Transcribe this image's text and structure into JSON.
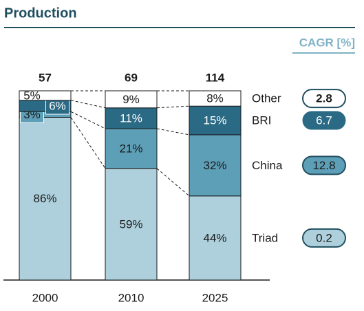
{
  "chart_data": {
    "type": "bar",
    "title": "Production",
    "cagr_label": "CAGR [%]",
    "categories": [
      "2000",
      "2010",
      "2025"
    ],
    "totals": [
      57,
      69,
      114
    ],
    "series": [
      {
        "name": "Triad",
        "color": "#aed0dc",
        "values": [
          86,
          59,
          44
        ],
        "value_labels": [
          "86%",
          "59%",
          "44%"
        ],
        "cagr": 0.2
      },
      {
        "name": "China",
        "color": "#5e9fb8",
        "values": [
          3,
          21,
          32
        ],
        "value_labels": [
          "3%",
          "21%",
          "32%"
        ],
        "cagr": 12.8
      },
      {
        "name": "BRI",
        "color": "#2a6a85",
        "values": [
          6,
          11,
          15
        ],
        "value_labels": [
          "6%",
          "11%",
          "15%"
        ],
        "cagr": 6.7
      },
      {
        "name": "Other",
        "color": "#ffffff",
        "values": [
          5,
          9,
          8
        ],
        "value_labels": [
          "5%",
          "9%",
          "8%"
        ],
        "cagr": 2.8
      }
    ]
  }
}
